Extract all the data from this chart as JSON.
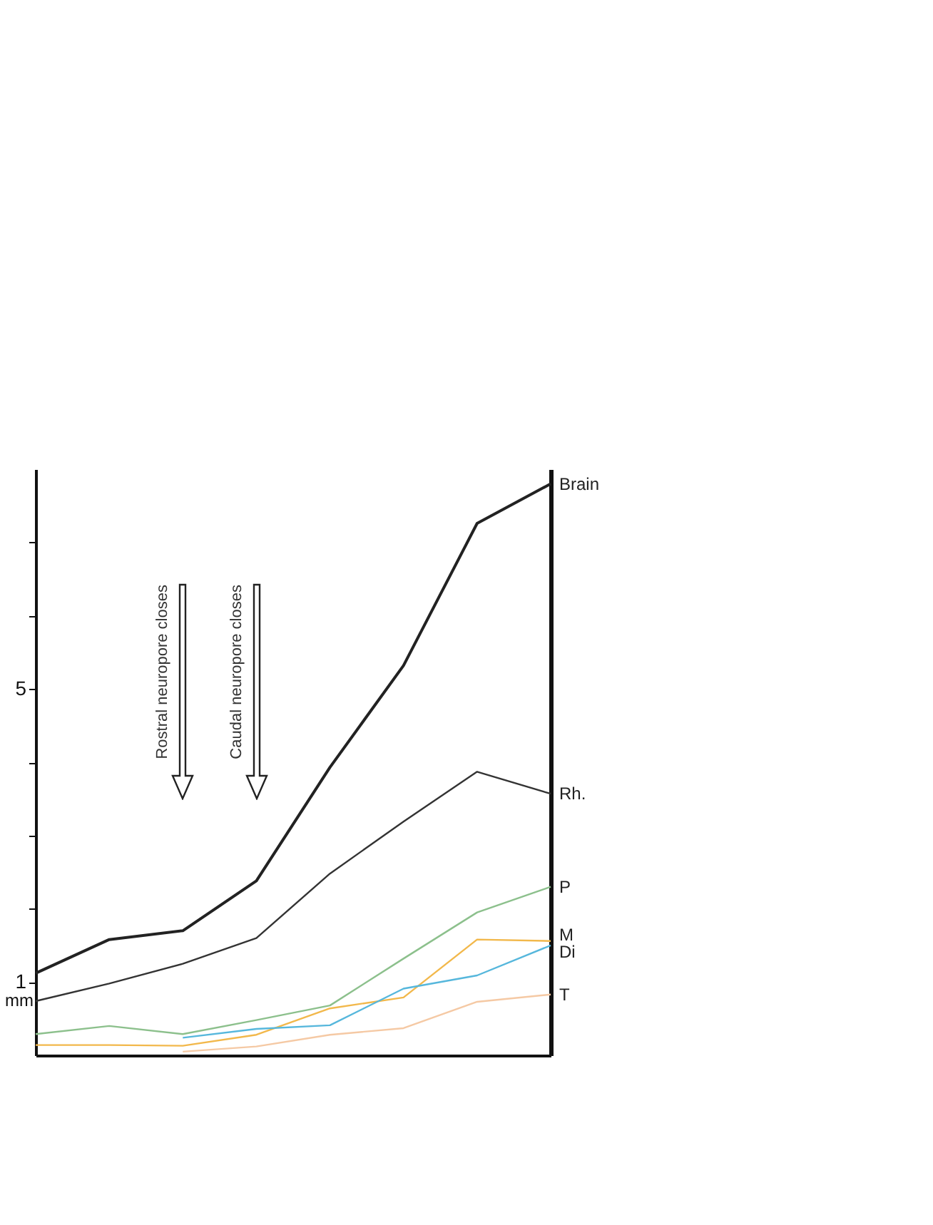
{
  "chart_data": {
    "type": "line",
    "categories": [
      null,
      null,
      null,
      null,
      null,
      null,
      null,
      null
    ],
    "series": [
      {
        "name": "Brain",
        "color": "#222222",
        "values": [
          1.12,
          1.58,
          1.7,
          2.38,
          3.93,
          5.32,
          7.26,
          7.8
        ]
      },
      {
        "name": "Rh.",
        "color": "#333333",
        "values": [
          0.74,
          0.98,
          1.25,
          1.6,
          2.48,
          3.19,
          3.87,
          3.57
        ]
      },
      {
        "name": "P",
        "color": "#8cc08c",
        "values": [
          0.29,
          0.4,
          0.29,
          0.48,
          0.68,
          1.32,
          1.95,
          2.3
        ]
      },
      {
        "name": "M",
        "color": "#f2b84b",
        "values": [
          0.14,
          0.14,
          0.13,
          0.28,
          0.64,
          0.79,
          1.58,
          1.56
        ]
      },
      {
        "name": "Di",
        "color": "#56b7dc",
        "values": [
          null,
          null,
          0.24,
          0.36,
          0.41,
          0.91,
          1.09,
          1.5
        ]
      },
      {
        "name": "T",
        "color": "#f5c9a4",
        "values": [
          null,
          null,
          0.05,
          0.12,
          0.28,
          0.37,
          0.73,
          0.83
        ]
      }
    ],
    "ylim": [
      0,
      8
    ],
    "ylabel": "mm",
    "yticks": [
      1,
      {
        "value": 2,
        "label": null
      },
      {
        "value": 3,
        "label": null
      },
      {
        "value": 4,
        "label": null
      },
      5,
      {
        "value": 6,
        "label": null
      },
      {
        "value": 7,
        "label": null
      }
    ],
    "tick_labels": "y",
    "grid": false,
    "legend": false,
    "marker": "none",
    "line_style": "solid",
    "annotations": [
      "Rostral neuropore closes",
      "Caudal neuropore closes"
    ]
  }
}
